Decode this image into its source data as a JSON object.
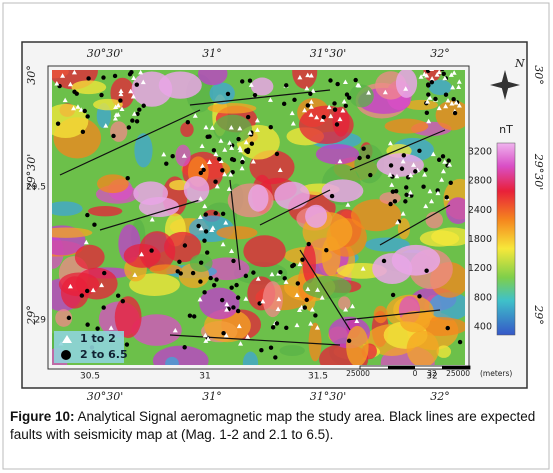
{
  "figure": {
    "map": {
      "top_labels": [
        "30°30'",
        "31°",
        "31°30'",
        "32°"
      ],
      "bottom_labels": [
        "30°30'",
        "31°",
        "31°30'",
        "32°"
      ],
      "left_labels": [
        "30°",
        "29°30'",
        "29°"
      ],
      "right_labels": [
        "30°",
        "29°30'",
        "29°"
      ],
      "inner_y_labels": [
        "29.5",
        "29"
      ],
      "inner_x_labels": [
        "30.5",
        "31",
        "31.5",
        "32"
      ],
      "compass": "N",
      "colorbar": {
        "unit": "nT",
        "labels": [
          "3200",
          "2800",
          "2400",
          "1800",
          "1200",
          "800",
          "400"
        ]
      },
      "legend": [
        "1 to 2",
        "2 to 6.5"
      ],
      "scale": {
        "labels": [
          "25000",
          "0",
          "32",
          "25000"
        ],
        "unit": "(meters)"
      }
    },
    "caption": {
      "label": "Figure 10:",
      "text": "Analytical Signal aeromagnetic map the study area. Black lines are expected faults with seismicity map at (Mag. 1-2 and 2.1 to 6.5)."
    }
  }
}
